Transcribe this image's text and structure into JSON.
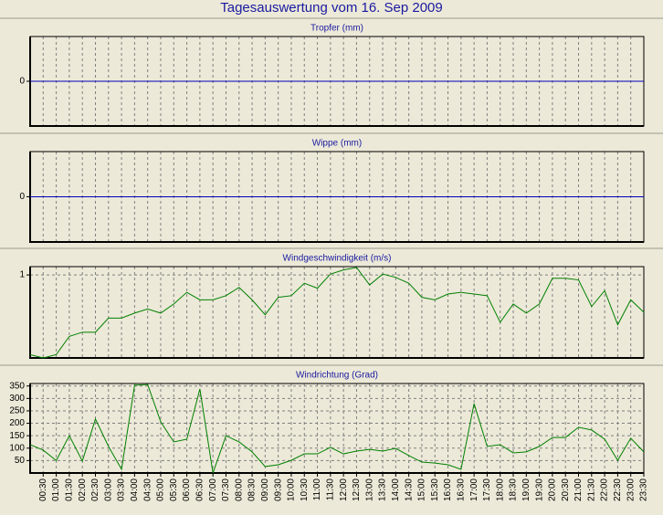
{
  "title": "Tagesauswertung vom 16. Sep 2009",
  "chart_data": [
    {
      "type": "line",
      "title": "Tropfer (mm)",
      "color": "#0000c0",
      "values": [
        0,
        0,
        0,
        0,
        0,
        0,
        0,
        0,
        0,
        0,
        0,
        0,
        0,
        0,
        0,
        0,
        0,
        0,
        0,
        0,
        0,
        0,
        0,
        0,
        0,
        0,
        0,
        0,
        0,
        0,
        0,
        0,
        0,
        0,
        0,
        0,
        0,
        0,
        0,
        0,
        0,
        0,
        0,
        0,
        0,
        0,
        0,
        0
      ],
      "ylim": [
        -1,
        1
      ],
      "yticks": [
        0
      ],
      "grid": true
    },
    {
      "type": "line",
      "title": "Wippe (mm)",
      "color": "#0000c0",
      "values": [
        0,
        0,
        0,
        0,
        0,
        0,
        0,
        0,
        0,
        0,
        0,
        0,
        0,
        0,
        0,
        0,
        0,
        0,
        0,
        0,
        0,
        0,
        0,
        0,
        0,
        0,
        0,
        0,
        0,
        0,
        0,
        0,
        0,
        0,
        0,
        0,
        0,
        0,
        0,
        0,
        0,
        0,
        0,
        0,
        0,
        0,
        0,
        0
      ],
      "ylim": [
        -1,
        1
      ],
      "yticks": [
        0
      ],
      "grid": true
    },
    {
      "type": "line",
      "title": "Windgeschwindigkeit (m/s)",
      "color": "#008000",
      "values": [
        0.04,
        0.0,
        0.04,
        0.26,
        0.31,
        0.31,
        0.48,
        0.48,
        0.54,
        0.59,
        0.54,
        0.65,
        0.79,
        0.7,
        0.7,
        0.75,
        0.85,
        0.7,
        0.52,
        0.73,
        0.75,
        0.9,
        0.84,
        1.01,
        1.06,
        1.09,
        0.88,
        1.01,
        0.97,
        0.9,
        0.73,
        0.7,
        0.77,
        0.79,
        0.77,
        0.75,
        0.43,
        0.65,
        0.54,
        0.65,
        0.96,
        0.96,
        0.94,
        0.62,
        0.81,
        0.4,
        0.7,
        0.55
      ],
      "ylim": [
        0,
        1.1
      ],
      "yticks": [
        1
      ],
      "grid": true
    },
    {
      "type": "line",
      "title": "Windrichtung (Grad)",
      "color": "#008000",
      "categories": [
        null,
        "00:30",
        "01:00",
        "01:30",
        "02:00",
        "02:30",
        "03:00",
        "03:30",
        "04:00",
        "04:30",
        "05:00",
        "05:30",
        "06:00",
        "06:30",
        "07:00",
        "07:30",
        "08:00",
        "08:30",
        "09:00",
        "09:30",
        "10:00",
        "10:30",
        "11:00",
        "11:30",
        "12:00",
        "12:30",
        "13:00",
        "13:30",
        "14:00",
        "14:30",
        "15:00",
        "15:30",
        "16:00",
        "16:30",
        "17:00",
        "17:30",
        "18:00",
        "18:30",
        "19:00",
        "19:30",
        "20:00",
        "20:30",
        "21:00",
        "21:30",
        "22:00",
        "22:30",
        "23:00",
        "23:30"
      ],
      "values": [
        114,
        92,
        50,
        150,
        48,
        217,
        107,
        15,
        353,
        356,
        206,
        125,
        136,
        338,
        0,
        150,
        125,
        85,
        26,
        33,
        51,
        77,
        77,
        103,
        77,
        88,
        95,
        88,
        99,
        70,
        44,
        40,
        33,
        15,
        279,
        107,
        114,
        81,
        85,
        107,
        143,
        143,
        184,
        173,
        136,
        51,
        140,
        85
      ],
      "ylim": [
        0,
        360
      ],
      "yticks": [
        50,
        100,
        150,
        200,
        250,
        300,
        350
      ],
      "grid": true
    }
  ]
}
